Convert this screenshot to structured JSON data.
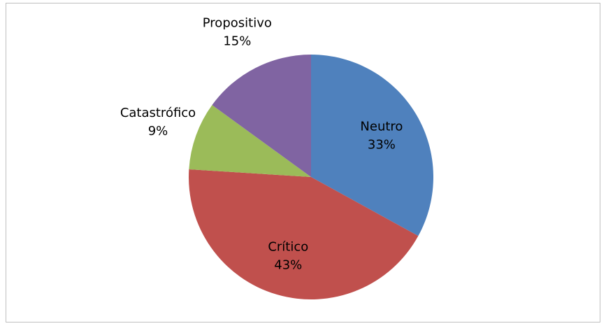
{
  "chart_data": {
    "type": "pie",
    "categories": [
      "Neutro",
      "Crítico",
      "Catastrófico",
      "Propositivo"
    ],
    "values": [
      33,
      43,
      9,
      15
    ],
    "value_labels": [
      "33%",
      "43%",
      "9%",
      "15%"
    ],
    "colors": [
      "#4f81bd",
      "#c0504d",
      "#9bbb59",
      "#8064a2"
    ]
  }
}
